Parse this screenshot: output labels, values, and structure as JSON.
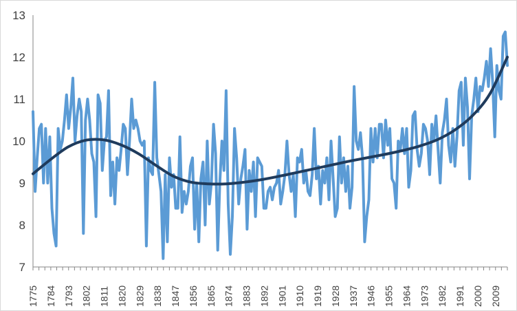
{
  "chart_data": {
    "type": "line",
    "title": "",
    "xlabel": "",
    "ylabel": "",
    "x_start": 1775,
    "x_end": 2015,
    "xtick_labels": [
      "1775",
      "1784",
      "1793",
      "1802",
      "1811",
      "1820",
      "1829",
      "1838",
      "1847",
      "1856",
      "1865",
      "1874",
      "1883",
      "1892",
      "1901",
      "1910",
      "1919",
      "1928",
      "1937",
      "1946",
      "1955",
      "1964",
      "1973",
      "1982",
      "1991",
      "2000",
      "2009"
    ],
    "yticks": [
      7,
      8,
      9,
      10,
      11,
      12,
      13
    ],
    "ylim": [
      7,
      13
    ],
    "grid": false,
    "legend": "none",
    "colors": {
      "series": "#5b9bd5",
      "trend": "#1f3b5c"
    },
    "series": [
      {
        "values": [
          10.7,
          8.8,
          9.6,
          10.3,
          10.4,
          9.0,
          10.3,
          9.0,
          10.1,
          8.4,
          7.8,
          7.5,
          10.3,
          9.8,
          10.0,
          10.5,
          11.1,
          10.3,
          10.8,
          11.5,
          10.0,
          10.6,
          11.0,
          10.7,
          7.8,
          10.5,
          11.0,
          10.5,
          9.7,
          9.5,
          8.2,
          11.1,
          10.9,
          9.3,
          10.0,
          10.1,
          11.2,
          8.7,
          9.5,
          8.5,
          9.6,
          9.3,
          9.8,
          10.4,
          10.3,
          9.2,
          10.0,
          11.0,
          10.3,
          10.5,
          10.3,
          10.0,
          9.9,
          10.0,
          7.5,
          9.6,
          9.3,
          9.2,
          11.4,
          9.6,
          9.2,
          8.8,
          7.2,
          9.2,
          7.6,
          9.6,
          8.9,
          9.2,
          8.4,
          8.4,
          10.1,
          8.3,
          8.8,
          8.5,
          8.8,
          9.4,
          9.6,
          7.9,
          9.0,
          7.6,
          9.1,
          9.5,
          8.0,
          10.0,
          8.5,
          9.0,
          10.4,
          9.7,
          7.4,
          9.0,
          10.0,
          9.3,
          11.2,
          8.5,
          7.3,
          8.2,
          10.3,
          9.6,
          8.5,
          9.1,
          9.4,
          9.8,
          7.9,
          9.3,
          8.8,
          9.5,
          8.2,
          9.6,
          9.5,
          9.4,
          8.4,
          8.4,
          8.8,
          8.9,
          8.6,
          8.9,
          9.0,
          9.3,
          8.5,
          8.8,
          9.2,
          10.0,
          9.2,
          8.8,
          9.2,
          8.2,
          9.6,
          9.5,
          9.8,
          9.0,
          9.3,
          8.8,
          8.7,
          9.2,
          10.3,
          9.1,
          9.4,
          8.5,
          9.3,
          9.0,
          9.6,
          8.6,
          10.0,
          9.1,
          8.2,
          8.4,
          10.1,
          9.0,
          9.6,
          8.8,
          9.4,
          8.4,
          8.9,
          11.3,
          10.0,
          9.8,
          10.2,
          9.6,
          7.6,
          8.2,
          8.6,
          10.3,
          9.5,
          10.3,
          9.6,
          10.4,
          10.4,
          9.6,
          10.5,
          9.9,
          10.3,
          9.1,
          9.0,
          8.4,
          10.0,
          9.8,
          10.3,
          9.7,
          10.3,
          8.9,
          9.3,
          10.6,
          10.7,
          9.8,
          9.4,
          9.7,
          10.4,
          10.3,
          10.0,
          9.2,
          10.4,
          10.0,
          10.6,
          9.8,
          9.0,
          10.2,
          10.5,
          11.0,
          9.9,
          9.5,
          10.3,
          9.4,
          10.1,
          11.2,
          11.4,
          9.9,
          11.5,
          10.8,
          9.1,
          10.6,
          11.0,
          11.5,
          10.7,
          11.3,
          11.2,
          11.5,
          11.9,
          11.3,
          12.2,
          11.4,
          10.1,
          11.8,
          11.2,
          11.0,
          12.5,
          12.6,
          11.8
        ],
        "trend": [
          9.22,
          9.56,
          9.86,
          10.02,
          10.03,
          9.91,
          9.7,
          9.42,
          9.16,
          9.02,
          8.98,
          8.98,
          9.02,
          9.08,
          9.16,
          9.25,
          9.34,
          9.43,
          9.52,
          9.6,
          9.68,
          9.77,
          9.88,
          10.03,
          10.26,
          10.6,
          11.12,
          12.0
        ]
      }
    ]
  }
}
